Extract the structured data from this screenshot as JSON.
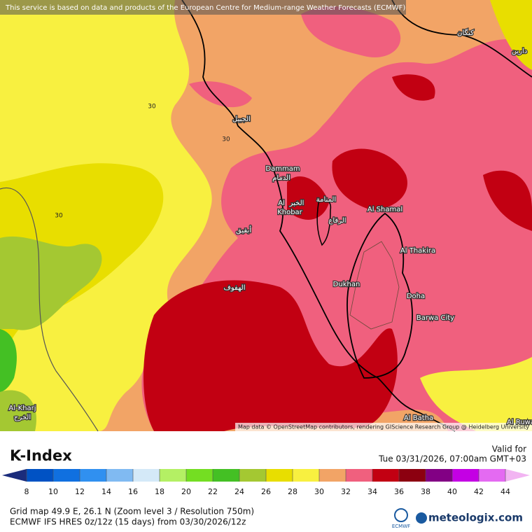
{
  "banner": "This service is based on data and products of the European Centre for Medium-range Weather Forecasts (ECMWF)",
  "map": {
    "places": [
      "الجبيل",
      "Dammam",
      "الدمام",
      "Al",
      "الخبر",
      "Khobar",
      "المنامة",
      "الرفاع",
      "Al Shamal",
      "Al Thakira",
      "Dukhan",
      "Doha",
      "Barwa City",
      "الهفوف",
      "أبقيق",
      "Al-Kharj",
      "الخرج",
      "Al Batha",
      "Al Ruwa",
      "كنگان",
      "دارين"
    ],
    "contour_labels": [
      "30",
      "30",
      "30"
    ],
    "attribution": "Map data © OpenStreetMap contributors, rendering GIScience Research Group @ Heidelberg University"
  },
  "legend": {
    "title": "K-Index",
    "valid_label": "Valid for",
    "valid_time": "Tue 03/31/2026, 07:00am GMT+03",
    "ticks": [
      8,
      10,
      12,
      14,
      16,
      18,
      20,
      22,
      24,
      26,
      28,
      30,
      32,
      34,
      36,
      38,
      40,
      42,
      44
    ],
    "colors": [
      "#1b2c7c",
      "#0052c4",
      "#1070e0",
      "#3090f0",
      "#80baf2",
      "#d4e9f8",
      "#b4f064",
      "#74de22",
      "#44c024",
      "#a4c832",
      "#e8de00",
      "#f8f040",
      "#f2a466",
      "#f0607e",
      "#c20012",
      "#8c0010",
      "#820084",
      "#c400e4",
      "#e46af2",
      "#f2b4f2"
    ]
  },
  "footer": {
    "line1": "Grid map 49.9 E, 26.1 N (Zoom level 3 / Resolution 750m)",
    "line2": "ECMWF IFS HRES 0z/12z (15 days) from  03/30/2026/12z",
    "ecmwf": "ECMWF",
    "brand": "meteologix.com"
  }
}
